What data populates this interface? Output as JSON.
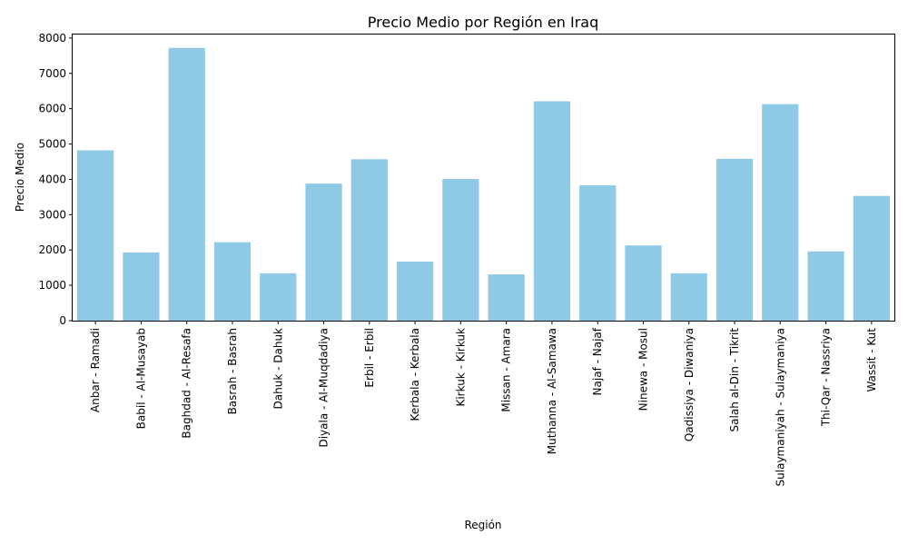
{
  "chart_data": {
    "type": "bar",
    "title": "Precio Medio por Región en Iraq",
    "xlabel": "Región",
    "ylabel": "Precio Medio",
    "ylim": [
      0,
      8100
    ],
    "yticks": [
      0,
      1000,
      2000,
      3000,
      4000,
      5000,
      6000,
      7000,
      8000
    ],
    "grid": false,
    "bar_color": "#8ecae6",
    "categories": [
      "Anbar - Ramadi",
      "Babil - Al-Musayab",
      "Baghdad - Al-Resafa",
      "Basrah - Basrah",
      "Dahuk - Dahuk",
      "Diyala - Al-Muqdadiya",
      "Erbil - Erbil",
      "Kerbala - Kerbala",
      "Kirkuk - Kirkuk",
      "Missan - Amara",
      "Muthanna - Al-Samawa",
      "Najaf - Najaf",
      "Ninewa - Mosul",
      "Qadissiya - Diwaniya",
      "Salah al-Din - Tikrit",
      "Sulaymaniyah - Sulaymaniya",
      "Thi-Qar - Nassriya",
      "Wassit - Kut"
    ],
    "values": [
      4820,
      1930,
      7720,
      2220,
      1340,
      3880,
      4570,
      1670,
      4010,
      1310,
      6210,
      3830,
      2130,
      1340,
      4580,
      6130,
      1960,
      3530
    ]
  }
}
